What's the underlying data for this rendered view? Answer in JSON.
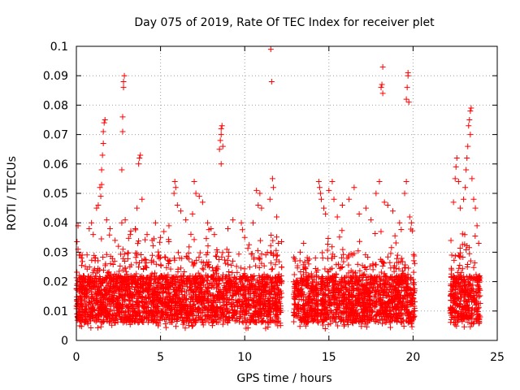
{
  "chart_data": {
    "type": "scatter",
    "title": "Day 075 of 2019, Rate Of TEC Index for receiver plet",
    "xlabel": "GPS time / hours",
    "ylabel": "ROTI / TECUs",
    "xlim": [
      0,
      25
    ],
    "ylim": [
      0,
      0.1
    ],
    "xticks": [
      0,
      5,
      10,
      15,
      20,
      25
    ],
    "xtick_labels": [
      "0",
      "5",
      "10",
      "15",
      "20",
      "25"
    ],
    "yticks": [
      0,
      0.01,
      0.02,
      0.03,
      0.04,
      0.05,
      0.06,
      0.07,
      0.08,
      0.09,
      0.1
    ],
    "ytick_labels": [
      "0",
      "0.01",
      "0.02",
      "0.03",
      "0.04",
      "0.05",
      "0.06",
      "0.07",
      "0.08",
      "0.09",
      "0.1"
    ],
    "grid": true,
    "marker": "+",
    "color": "#ff0000",
    "coverage": [
      [
        0,
        12.2
      ],
      [
        12.9,
        14.4
      ],
      [
        14.5,
        20.1
      ],
      [
        22.2,
        24.0
      ]
    ],
    "series": [
      {
        "name": "ROTI",
        "note": "Dense cloud of ~0.005-0.025 values across covered hours; notable peaks listed below",
        "points": [
          [
            0.1,
            0.039
          ],
          [
            0.1,
            0.031
          ],
          [
            0.3,
            0.028
          ],
          [
            0.9,
            0.04
          ],
          [
            1.0,
            0.036
          ],
          [
            1.2,
            0.045
          ],
          [
            1.3,
            0.046
          ],
          [
            1.4,
            0.052
          ],
          [
            1.5,
            0.058
          ],
          [
            1.55,
            0.063
          ],
          [
            1.6,
            0.067
          ],
          [
            1.6,
            0.071
          ],
          [
            1.65,
            0.074
          ],
          [
            1.7,
            0.075
          ],
          [
            1.5,
            0.053
          ],
          [
            1.45,
            0.049
          ],
          [
            1.8,
            0.041
          ],
          [
            2.0,
            0.038
          ],
          [
            2.3,
            0.034
          ],
          [
            2.5,
            0.032
          ],
          [
            2.7,
            0.058
          ],
          [
            2.75,
            0.071
          ],
          [
            2.75,
            0.076
          ],
          [
            2.8,
            0.086
          ],
          [
            2.8,
            0.088
          ],
          [
            2.85,
            0.09
          ],
          [
            2.7,
            0.04
          ],
          [
            2.9,
            0.041
          ],
          [
            3.2,
            0.036
          ],
          [
            3.5,
            0.038
          ],
          [
            3.6,
            0.045
          ],
          [
            3.7,
            0.06
          ],
          [
            3.75,
            0.062
          ],
          [
            3.8,
            0.063
          ],
          [
            3.9,
            0.048
          ],
          [
            4.2,
            0.036
          ],
          [
            4.5,
            0.034
          ],
          [
            4.7,
            0.04
          ],
          [
            5.0,
            0.035
          ],
          [
            5.2,
            0.037
          ],
          [
            5.5,
            0.039
          ],
          [
            5.8,
            0.05
          ],
          [
            5.85,
            0.054
          ],
          [
            5.9,
            0.052
          ],
          [
            6.0,
            0.046
          ],
          [
            6.2,
            0.044
          ],
          [
            6.5,
            0.041
          ],
          [
            6.9,
            0.043
          ],
          [
            7.0,
            0.054
          ],
          [
            7.1,
            0.05
          ],
          [
            7.3,
            0.049
          ],
          [
            7.5,
            0.047
          ],
          [
            7.8,
            0.04
          ],
          [
            8.0,
            0.038
          ],
          [
            8.2,
            0.036
          ],
          [
            8.5,
            0.065
          ],
          [
            8.55,
            0.068
          ],
          [
            8.6,
            0.07
          ],
          [
            8.6,
            0.072
          ],
          [
            8.65,
            0.073
          ],
          [
            8.7,
            0.066
          ],
          [
            8.6,
            0.06
          ],
          [
            9.0,
            0.038
          ],
          [
            9.3,
            0.041
          ],
          [
            9.8,
            0.04
          ],
          [
            10.0,
            0.035
          ],
          [
            10.5,
            0.04
          ],
          [
            10.7,
            0.051
          ],
          [
            10.8,
            0.046
          ],
          [
            10.9,
            0.05
          ],
          [
            11.0,
            0.045
          ],
          [
            11.5,
            0.048
          ],
          [
            11.55,
            0.099
          ],
          [
            11.6,
            0.088
          ],
          [
            11.65,
            0.055
          ],
          [
            11.7,
            0.052
          ],
          [
            11.9,
            0.042
          ],
          [
            12.0,
            0.033
          ],
          [
            13.0,
            0.027
          ],
          [
            13.3,
            0.03
          ],
          [
            13.5,
            0.033
          ],
          [
            13.8,
            0.026
          ],
          [
            14.2,
            0.028
          ],
          [
            14.4,
            0.054
          ],
          [
            14.45,
            0.052
          ],
          [
            14.5,
            0.05
          ],
          [
            14.55,
            0.048
          ],
          [
            14.7,
            0.045
          ],
          [
            14.8,
            0.043
          ],
          [
            15.0,
            0.051
          ],
          [
            15.2,
            0.054
          ],
          [
            15.3,
            0.048
          ],
          [
            15.5,
            0.042
          ],
          [
            15.8,
            0.046
          ],
          [
            16.2,
            0.048
          ],
          [
            16.5,
            0.052
          ],
          [
            16.8,
            0.043
          ],
          [
            17.2,
            0.045
          ],
          [
            17.5,
            0.041
          ],
          [
            17.8,
            0.05
          ],
          [
            18.0,
            0.054
          ],
          [
            18.1,
            0.086
          ],
          [
            18.15,
            0.087
          ],
          [
            18.2,
            0.093
          ],
          [
            18.2,
            0.084
          ],
          [
            18.3,
            0.047
          ],
          [
            18.5,
            0.046
          ],
          [
            18.8,
            0.044
          ],
          [
            19.2,
            0.04
          ],
          [
            19.5,
            0.05
          ],
          [
            19.6,
            0.054
          ],
          [
            19.6,
            0.082
          ],
          [
            19.65,
            0.086
          ],
          [
            19.7,
            0.09
          ],
          [
            19.7,
            0.091
          ],
          [
            19.75,
            0.081
          ],
          [
            19.8,
            0.042
          ],
          [
            19.9,
            0.04
          ],
          [
            22.3,
            0.029
          ],
          [
            22.4,
            0.047
          ],
          [
            22.5,
            0.055
          ],
          [
            22.55,
            0.059
          ],
          [
            22.6,
            0.062
          ],
          [
            22.7,
            0.054
          ],
          [
            22.8,
            0.045
          ],
          [
            23.0,
            0.048
          ],
          [
            23.1,
            0.052
          ],
          [
            23.15,
            0.058
          ],
          [
            23.2,
            0.062
          ],
          [
            23.25,
            0.066
          ],
          [
            23.3,
            0.073
          ],
          [
            23.35,
            0.075
          ],
          [
            23.4,
            0.078
          ],
          [
            23.45,
            0.079
          ],
          [
            23.4,
            0.07
          ],
          [
            23.5,
            0.055
          ],
          [
            23.6,
            0.048
          ],
          [
            23.7,
            0.045
          ],
          [
            23.8,
            0.039
          ],
          [
            23.9,
            0.033
          ]
        ]
      }
    ]
  }
}
